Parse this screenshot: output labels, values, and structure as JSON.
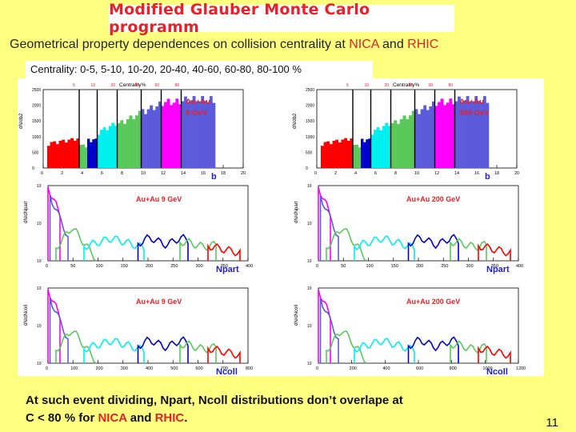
{
  "title": "Modified Glauber  Monte Carlo  programm",
  "subtitle": {
    "prefix": "Geometrical property  dependences  on collision centrality at  ",
    "nica": "NICA",
    "and": "  and  ",
    "rhic": "RHIC"
  },
  "centrality_text": "Centrality:  0-5, 5-10, 10-20, 20-40, 40-60, 60-80, 80-100 %",
  "panels": {
    "left_b_label": "Au+Au\n9 GeV",
    "right_b_label": "Au+Au\n200 GeV",
    "left_npart_label": "Au+Au  9 GeV",
    "right_npart_label": "Au+Au  200 GeV",
    "left_ncoll_label": "Au+Au 9 GeV",
    "right_ncoll_label": "Au+Au  200 GeV",
    "b_title": "Centrality%",
    "b_axis": "b",
    "npart_axis": "Npart",
    "ncoll_axis": "Ncoll",
    "b_ylabel": "dN/db2",
    "npart_ylabel": "dN/dNpart",
    "ncoll_ylabel": "dN/dNcoll",
    "centrality_marks": [
      "5",
      "10",
      "20",
      "40",
      "60",
      "80"
    ],
    "b_ticks": [
      "0",
      "2",
      "4",
      "6",
      "8",
      "10",
      "12",
      "14",
      "16",
      "18",
      "20"
    ],
    "npart_ticks": [
      "0",
      "50",
      "100",
      "150",
      "200",
      "250",
      "300",
      "350",
      "400"
    ],
    "ncoll_ticks_left": [
      "0",
      "100",
      "200",
      "300",
      "400",
      "500",
      "600",
      "700",
      "800"
    ],
    "ncoll_ticks_right": [
      "0",
      "200",
      "400",
      "600",
      "800",
      "1000",
      "1200"
    ],
    "b_yticks": [
      "0",
      "500",
      "1000",
      "1500",
      "2000",
      "2500"
    ],
    "log_yticks": [
      "10",
      "10",
      "10"
    ]
  },
  "colors": {
    "red": "#FF0000",
    "magenta": "#FF00FF",
    "purple": "#5B5BDB",
    "green": "#5AC95A",
    "cyan": "#00F0F0",
    "blue": "#0000CC"
  },
  "footer": {
    "line1": " At such event dividing,  Npart,  Ncoll distributions don’t overlape at",
    "line2_prefix": "C < 80 % for  ",
    "nica": "NICA",
    "and": " and ",
    "rhic": "RHIC",
    "period": "."
  },
  "page_number": "11"
}
